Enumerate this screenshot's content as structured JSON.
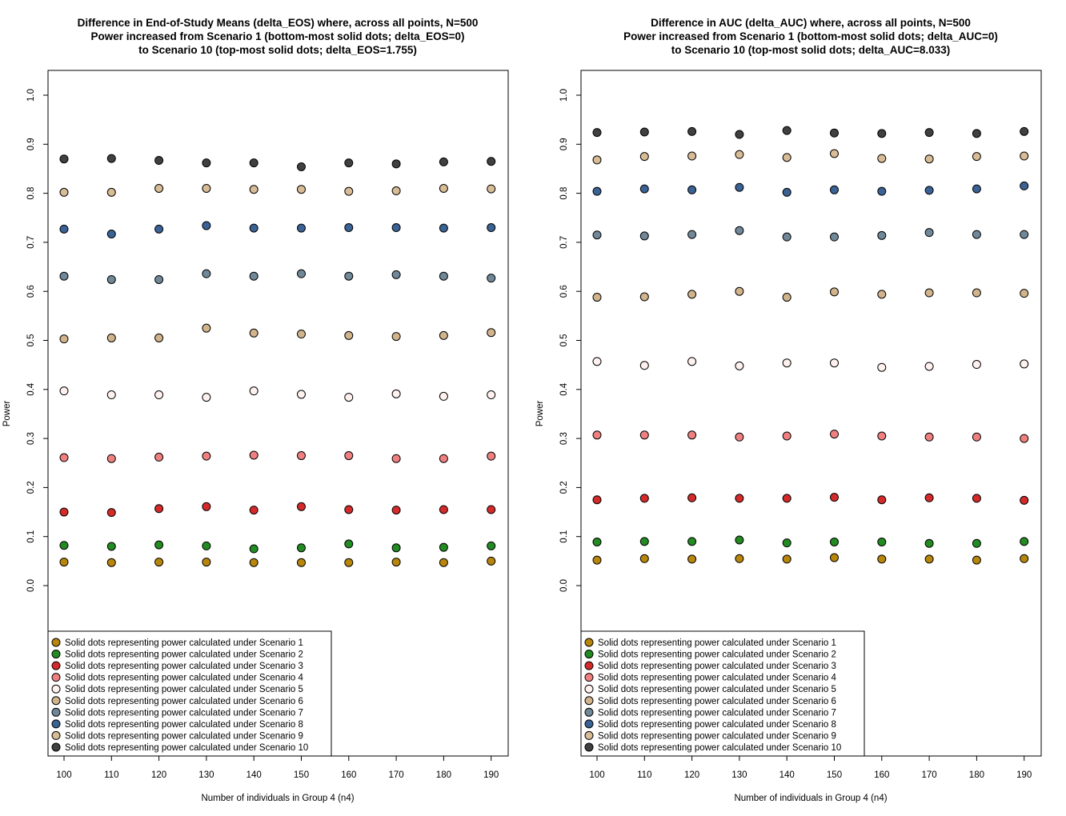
{
  "colors": {
    "s1": "#b8860b",
    "s2": "#228b22",
    "s3": "#d42a2a",
    "s4": "#f08080",
    "s5": "#fff1ee",
    "s6": "#d2b48c",
    "s7": "#708898",
    "s8": "#3a6294",
    "s9": "#d8bc96",
    "s10": "#404040"
  },
  "chart_data": [
    {
      "type": "scatter",
      "title": [
        "Difference in End-of-Study Means (delta_EOS) where, across all points, N=500",
        "Power increased from Scenario 1 (bottom-most solid dots; delta_EOS=0)",
        "to Scenario 10 (top-most solid dots; delta_EOS=1.755)"
      ],
      "xlabel": "Number of individuals in Group 4 (n4)",
      "ylabel": "Power",
      "x": [
        100,
        110,
        120,
        130,
        140,
        150,
        160,
        170,
        180,
        190
      ],
      "x_ticks": [
        "100",
        "110",
        "120",
        "130",
        "140",
        "150",
        "160",
        "170",
        "180",
        "190"
      ],
      "y_ticks": [
        "0.0",
        "0.1",
        "0.2",
        "0.3",
        "0.4",
        "0.5",
        "0.6",
        "0.7",
        "0.8",
        "0.9",
        "1.0"
      ],
      "ylim": [
        -0.17,
        1.05
      ],
      "grid": false,
      "legend_position": "bottom-left",
      "series": [
        {
          "name": "Solid dots representing power calculated under Scenario 1",
          "color_key": "s1",
          "values": [
            0.048,
            0.047,
            0.048,
            0.048,
            0.047,
            0.047,
            0.047,
            0.048,
            0.047,
            0.05
          ]
        },
        {
          "name": "Solid dots representing power calculated under Scenario 2",
          "color_key": "s2",
          "values": [
            0.082,
            0.08,
            0.083,
            0.081,
            0.075,
            0.077,
            0.085,
            0.077,
            0.078,
            0.081
          ]
        },
        {
          "name": "Solid dots representing power calculated under Scenario 3",
          "color_key": "s3",
          "values": [
            0.15,
            0.149,
            0.157,
            0.161,
            0.154,
            0.161,
            0.155,
            0.154,
            0.155,
            0.155
          ]
        },
        {
          "name": "Solid dots representing power calculated under Scenario 4",
          "color_key": "s4",
          "values": [
            0.261,
            0.259,
            0.262,
            0.264,
            0.266,
            0.265,
            0.265,
            0.259,
            0.259,
            0.264
          ]
        },
        {
          "name": "Solid dots representing power calculated under Scenario 5",
          "color_key": "s5",
          "values": [
            0.397,
            0.389,
            0.389,
            0.384,
            0.397,
            0.39,
            0.384,
            0.391,
            0.386,
            0.389
          ]
        },
        {
          "name": "Solid dots representing power calculated under Scenario 6",
          "color_key": "s6",
          "values": [
            0.503,
            0.505,
            0.505,
            0.525,
            0.515,
            0.513,
            0.51,
            0.508,
            0.51,
            0.516
          ]
        },
        {
          "name": "Solid dots representing power calculated under Scenario 7",
          "color_key": "s7",
          "values": [
            0.631,
            0.624,
            0.624,
            0.636,
            0.631,
            0.636,
            0.631,
            0.634,
            0.631,
            0.627
          ]
        },
        {
          "name": "Solid dots representing power calculated under Scenario 8",
          "color_key": "s8",
          "values": [
            0.727,
            0.717,
            0.727,
            0.734,
            0.729,
            0.729,
            0.73,
            0.73,
            0.729,
            0.73
          ]
        },
        {
          "name": "Solid dots representing power calculated under Scenario 9",
          "color_key": "s9",
          "values": [
            0.802,
            0.802,
            0.81,
            0.81,
            0.808,
            0.808,
            0.804,
            0.805,
            0.81,
            0.809
          ]
        },
        {
          "name": "Solid dots representing power calculated under Scenario 10",
          "color_key": "s10",
          "values": [
            0.87,
            0.871,
            0.867,
            0.862,
            0.862,
            0.854,
            0.862,
            0.86,
            0.864,
            0.865
          ]
        }
      ]
    },
    {
      "type": "scatter",
      "title": [
        "Difference in AUC (delta_AUC) where, across all points, N=500",
        "Power increased from Scenario 1 (bottom-most solid dots; delta_AUC=0)",
        "to Scenario 10 (top-most solid dots; delta_AUC=8.033)"
      ],
      "xlabel": "Number of individuals in Group 4 (n4)",
      "ylabel": "Power",
      "x": [
        100,
        110,
        120,
        130,
        140,
        150,
        160,
        170,
        180,
        190
      ],
      "x_ticks": [
        "100",
        "110",
        "120",
        "130",
        "140",
        "150",
        "160",
        "170",
        "180",
        "190"
      ],
      "y_ticks": [
        "0.0",
        "0.1",
        "0.2",
        "0.3",
        "0.4",
        "0.5",
        "0.6",
        "0.7",
        "0.8",
        "0.9",
        "1.0"
      ],
      "ylim": [
        -0.17,
        1.05
      ],
      "grid": false,
      "legend_position": "bottom-left",
      "series": [
        {
          "name": "Solid dots representing power calculated under Scenario 1",
          "color_key": "s1",
          "values": [
            0.052,
            0.055,
            0.054,
            0.055,
            0.054,
            0.057,
            0.054,
            0.054,
            0.052,
            0.055
          ]
        },
        {
          "name": "Solid dots representing power calculated under Scenario 2",
          "color_key": "s2",
          "values": [
            0.089,
            0.09,
            0.09,
            0.093,
            0.087,
            0.089,
            0.089,
            0.086,
            0.086,
            0.09
          ]
        },
        {
          "name": "Solid dots representing power calculated under Scenario 3",
          "color_key": "s3",
          "values": [
            0.175,
            0.178,
            0.179,
            0.178,
            0.178,
            0.18,
            0.175,
            0.179,
            0.178,
            0.174
          ]
        },
        {
          "name": "Solid dots representing power calculated under Scenario 4",
          "color_key": "s4",
          "values": [
            0.307,
            0.307,
            0.307,
            0.303,
            0.305,
            0.309,
            0.305,
            0.303,
            0.303,
            0.3
          ]
        },
        {
          "name": "Solid dots representing power calculated under Scenario 5",
          "color_key": "s5",
          "values": [
            0.457,
            0.449,
            0.457,
            0.448,
            0.454,
            0.454,
            0.445,
            0.447,
            0.451,
            0.452
          ]
        },
        {
          "name": "Solid dots representing power calculated under Scenario 6",
          "color_key": "s6",
          "values": [
            0.588,
            0.589,
            0.594,
            0.6,
            0.588,
            0.599,
            0.594,
            0.597,
            0.597,
            0.596
          ]
        },
        {
          "name": "Solid dots representing power calculated under Scenario 7",
          "color_key": "s7",
          "values": [
            0.715,
            0.713,
            0.716,
            0.724,
            0.711,
            0.711,
            0.714,
            0.72,
            0.716,
            0.716
          ]
        },
        {
          "name": "Solid dots representing power calculated under Scenario 8",
          "color_key": "s8",
          "values": [
            0.804,
            0.809,
            0.807,
            0.812,
            0.802,
            0.807,
            0.804,
            0.806,
            0.809,
            0.815
          ]
        },
        {
          "name": "Solid dots representing power calculated under Scenario 9",
          "color_key": "s9",
          "values": [
            0.868,
            0.875,
            0.876,
            0.879,
            0.873,
            0.881,
            0.871,
            0.87,
            0.875,
            0.876
          ]
        },
        {
          "name": "Solid dots representing power calculated under Scenario 10",
          "color_key": "s10",
          "values": [
            0.924,
            0.925,
            0.926,
            0.92,
            0.928,
            0.923,
            0.922,
            0.924,
            0.922,
            0.926
          ]
        }
      ]
    }
  ]
}
